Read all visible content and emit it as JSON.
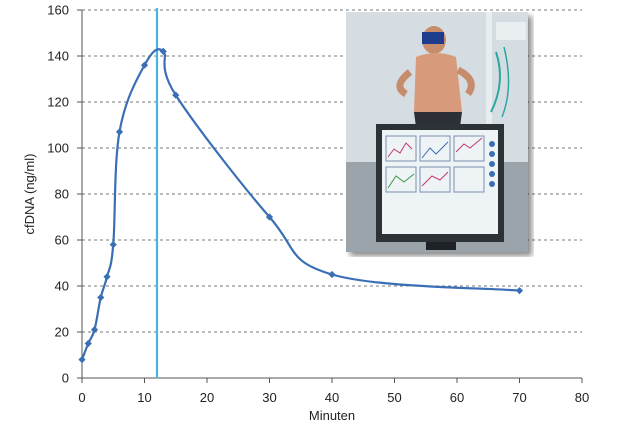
{
  "chart_data": {
    "type": "line",
    "title": "",
    "xlabel": "Minuten",
    "ylabel": "cfDNA (ng/ml)",
    "xlim": [
      0,
      80
    ],
    "ylim": [
      0,
      160
    ],
    "xticks": [
      0,
      10,
      20,
      30,
      40,
      50,
      60,
      70,
      80
    ],
    "yticks": [
      0,
      20,
      40,
      60,
      80,
      100,
      120,
      140,
      160
    ],
    "grid": "horizontal dashed",
    "legend": "none",
    "series": [
      {
        "color": "#3a6fb5",
        "marker": "diamond",
        "x": [
          0,
          1,
          2,
          3,
          4,
          5,
          6,
          10,
          13,
          15,
          30,
          40,
          70
        ],
        "y": [
          8,
          15,
          21,
          35,
          44,
          58,
          107,
          136,
          142,
          123,
          70,
          45,
          38
        ]
      }
    ],
    "reference_line": {
      "x": 12,
      "color": "#4bb3e0",
      "orientation": "vertical"
    }
  },
  "inset": {
    "icon": "treadmill-test-photo",
    "description_visible": false
  }
}
